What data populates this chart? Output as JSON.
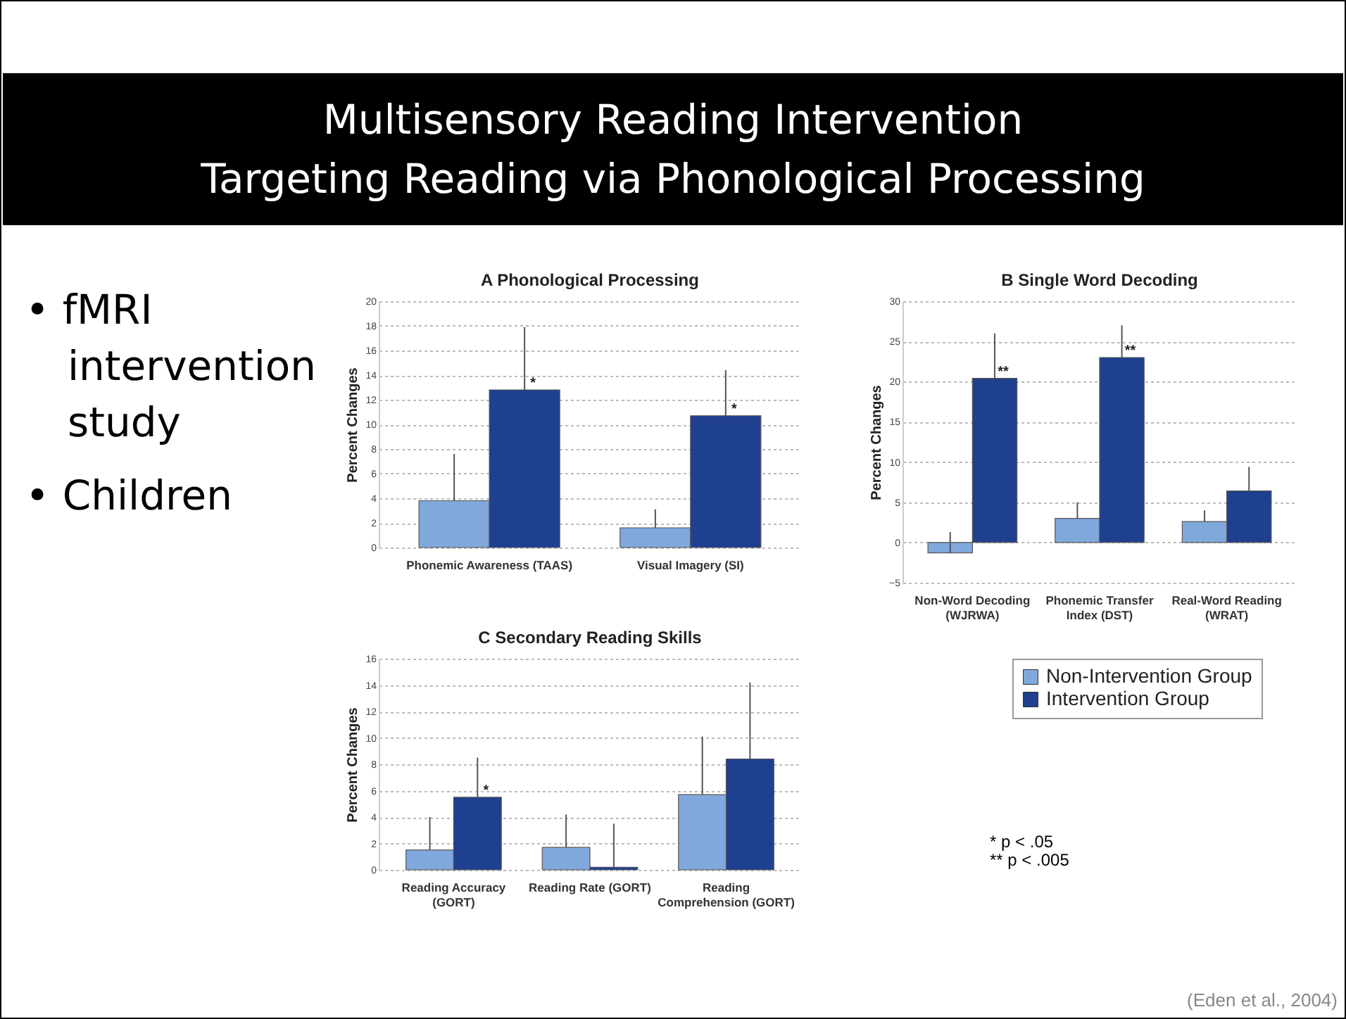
{
  "chart_data": [
    {
      "type": "bar",
      "title": "A Phonological Processing",
      "ylabel": "Percent Changes",
      "categories": [
        "Phonemic Awareness (TAAS)",
        "Visual Imagery (SI)"
      ],
      "series": [
        {
          "color": "#80a8dc",
          "values": [
            3.8,
            1.6
          ],
          "errors": [
            [
              3.8,
              7.6
            ],
            [
              1.6,
              3.1
            ]
          ]
        },
        {
          "color": "#1f3f8f",
          "values": [
            12.8,
            10.7
          ],
          "errors": [
            [
              12.8,
              17.9
            ],
            [
              10.7,
              14.4
            ]
          ]
        }
      ],
      "ylim": [
        0,
        20
      ],
      "yticks": [
        0,
        2,
        4,
        6,
        8,
        10,
        12,
        14,
        16,
        18,
        20
      ],
      "grid": "y",
      "annotations": [
        {
          "text": "*",
          "x": "Phonemic Awareness (TAAS)",
          "y": 12.8
        },
        {
          "text": "*",
          "x": "Visual Imagery (SI)",
          "y": 10.7
        }
      ]
    },
    {
      "type": "bar",
      "title": "B Single Word Decoding",
      "ylabel": "Percent Changes",
      "categories": [
        "Non-Word Decoding (WJRWA)",
        "Phonemic Transfer Index (DST)",
        "Real-Word Reading (WRAT)"
      ],
      "series": [
        {
          "color": "#80a8dc",
          "values": [
            -1.3,
            3.0,
            2.6
          ],
          "errors": [
            [
              -1.3,
              1.3
            ],
            [
              3.0,
              5.0
            ],
            [
              2.6,
              4.0
            ]
          ]
        },
        {
          "color": "#1f3f8f",
          "values": [
            20.4,
            23.0,
            6.4
          ],
          "errors": [
            [
              20.4,
              26.0
            ],
            [
              23.0,
              27.0
            ],
            [
              6.4,
              9.4
            ]
          ]
        }
      ],
      "ylim": [
        -5,
        30
      ],
      "yticks": [
        -5,
        0,
        5,
        10,
        15,
        20,
        25,
        30
      ],
      "grid": "y",
      "annotations": [
        {
          "text": "**",
          "x": "Non-Word Decoding (WJRWA)",
          "y": 20.4
        },
        {
          "text": "**",
          "x": "Phonemic Transfer Index (DST)",
          "y": 23.0
        }
      ]
    },
    {
      "type": "bar",
      "title": "C Secondary Reading Skills",
      "ylabel": "Percent Changes",
      "categories": [
        "Reading Accuracy (GORT)",
        "Reading Rate (GORT)",
        "Reading Comprehension (GORT)"
      ],
      "series": [
        {
          "name": "Non-Intervention Group",
          "color": "#80a8dc",
          "values": [
            1.5,
            1.7,
            5.7
          ],
          "errors": [
            [
              1.5,
              4.0
            ],
            [
              1.7,
              4.2
            ],
            [
              5.7,
              10.1
            ]
          ]
        },
        {
          "name": "Intervention Group",
          "color": "#1f3f8f",
          "values": [
            5.5,
            0.2,
            8.4
          ],
          "errors": [
            [
              5.5,
              8.5
            ],
            [
              0.2,
              3.5
            ],
            [
              8.4,
              14.2
            ]
          ]
        }
      ],
      "ylim": [
        0,
        16
      ],
      "yticks": [
        0,
        2,
        4,
        6,
        8,
        10,
        12,
        14,
        16
      ],
      "grid": "y",
      "legend": "right",
      "annotations": [
        {
          "text": "*",
          "x": "Reading Accuracy (GORT)",
          "y": 5.5
        },
        "* p < .05",
        "** p < .005"
      ]
    },
    {
      "type": "other",
      "title": "Multisensory Reading Intervention\nTargeting Reading via Phonological Processing",
      "annotations": [
        "• fMRI intervention study",
        "• Children",
        "(Eden et al., 2004)"
      ]
    }
  ]
}
